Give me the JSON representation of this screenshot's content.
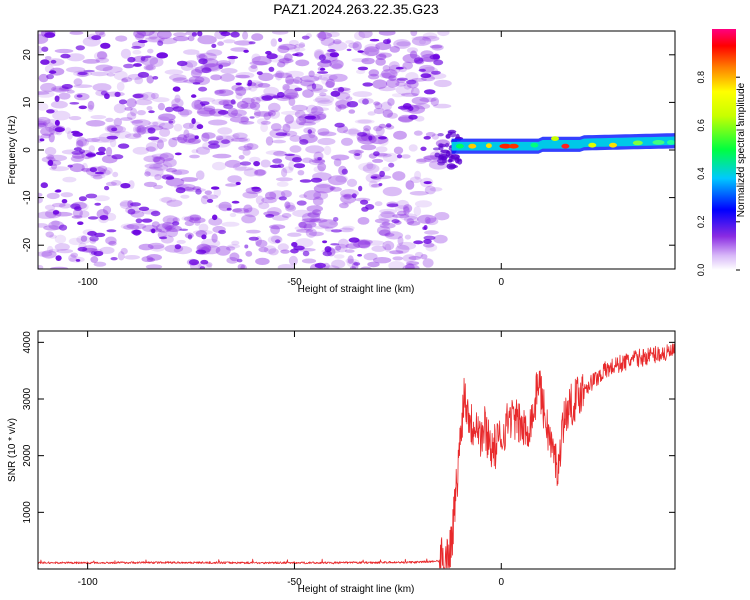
{
  "title": "PAZ1.2024.263.22.35.G23",
  "colors": {
    "snr_line": "#e8292b",
    "spectrogram_noise": "#8a2be2",
    "background": "#ffffff",
    "axis": "#000000"
  },
  "chart_data": [
    {
      "type": "heatmap",
      "title": "PAZ1.2024.263.22.35.G23",
      "xlabel": "Height of straight line (km)",
      "ylabel": "Frequency (Hz)",
      "xlim": [
        -112,
        42
      ],
      "ylim": [
        -25,
        25
      ],
      "xticks": [
        -100,
        -50,
        0
      ],
      "yticks": [
        -20,
        -10,
        0,
        10,
        20
      ],
      "colorbar": {
        "label": "Normalized spectral amplitude",
        "range": [
          0,
          1
        ],
        "ticks": [
          "0.0",
          "0.2",
          "0.4",
          "0.6",
          "0.8"
        ],
        "colormap": "rainbow: white-violet (0) → blue → cyan → green → yellow → orange → red → magenta (1)"
      },
      "features": [
        {
          "x_range": [
            -112,
            -15
          ],
          "frequency_range": [
            -25,
            25
          ],
          "amplitude": "~0.0-0.15 (scattered noise)"
        },
        {
          "x_range": [
            -15,
            42
          ],
          "frequency_center_hz": [
            0,
            2
          ],
          "amplitude": "~0.3-1.0 (narrow signal band)"
        },
        {
          "x_range": [
            -1,
            5
          ],
          "frequency_hz": 0.8,
          "amplitude": 0.95
        },
        {
          "x_range": [
            15,
            17
          ],
          "frequency_hz": 0.8,
          "amplitude": 0.9
        }
      ]
    },
    {
      "type": "line",
      "xlabel": "Height of straight line (km)",
      "ylabel": "SNR (10 * v/v)",
      "xlim": [
        -112,
        42
      ],
      "ylim": [
        0,
        4200
      ],
      "xticks": [
        -100,
        -50,
        0
      ],
      "yticks": [
        1000,
        2000,
        3000,
        4000
      ],
      "grid": false,
      "series": [
        {
          "x": [
            -112,
            -100,
            -80,
            -60,
            -40,
            -30,
            -20,
            -15,
            -13,
            -12,
            -11,
            -10,
            -9,
            -8,
            -7,
            -6,
            -5,
            -4,
            -2,
            0,
            2,
            4,
            6,
            8,
            9,
            10,
            12,
            14,
            14.5,
            16,
            18,
            20,
            22,
            25,
            28,
            30,
            32,
            35,
            38,
            40,
            42
          ],
          "y": [
            110,
            110,
            115,
            110,
            110,
            115,
            120,
            140,
            220,
            500,
            1300,
            2200,
            3100,
            2800,
            2500,
            2700,
            2300,
            2500,
            2100,
            2300,
            2700,
            2600,
            2400,
            2800,
            3400,
            2900,
            2200,
            1700,
            2500,
            2800,
            3000,
            3200,
            3300,
            3500,
            3600,
            3650,
            3700,
            3750,
            3800,
            3800,
            3850
          ]
        }
      ]
    }
  ]
}
